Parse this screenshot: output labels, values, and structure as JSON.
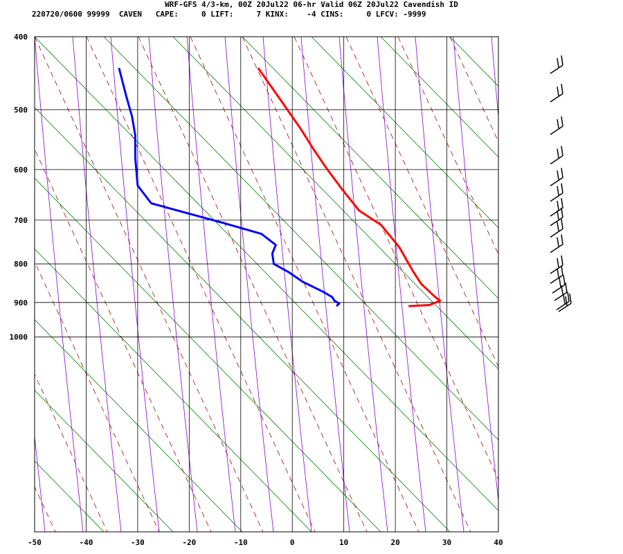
{
  "header": {
    "title": "WRF-GFS 4/3-km, 00Z 20Jul22 06-hr Valid 06Z 20Jul22 Cavendish ID",
    "stats": "220720/0600 99999  CAVEN   CAPE:     0 LIFT:     7 KINX:    -4 CINS:     0 LFCV: -9999"
  },
  "chart_data": {
    "type": "line",
    "title": "WRF-GFS 4/3-km, 00Z 20Jul22 06-hr Valid 06Z 20Jul22 Cavendish ID",
    "xlabel": "",
    "ylabel": "",
    "x_ticks": [
      -50,
      -40,
      -30,
      -20,
      -10,
      0,
      10,
      20,
      30,
      40
    ],
    "y_ticks": [
      400,
      500,
      600,
      700,
      800,
      900,
      1000
    ],
    "xlim": [
      -50,
      40
    ],
    "ylim": [
      1050,
      400
    ],
    "log_scale_y": true,
    "grid": true,
    "series": [
      {
        "name": "",
        "color": "#ff0000",
        "points": [
          [
            -16,
            440
          ],
          [
            -11,
            485
          ],
          [
            -6.5,
            530
          ],
          [
            -3.5,
            565
          ],
          [
            -0.5,
            600
          ],
          [
            3,
            640
          ],
          [
            6.5,
            680
          ],
          [
            11,
            710
          ],
          [
            15,
            760
          ],
          [
            18,
            815
          ],
          [
            20,
            850
          ],
          [
            23,
            885
          ],
          [
            24,
            895
          ],
          [
            22,
            907
          ],
          [
            18,
            910
          ]
        ]
      },
      {
        "name": "",
        "color": "#0000ff",
        "points": [
          [
            -43,
            440
          ],
          [
            -41,
            480
          ],
          [
            -39.5,
            510
          ],
          [
            -38.5,
            540
          ],
          [
            -38,
            580
          ],
          [
            -37,
            630
          ],
          [
            -34,
            665
          ],
          [
            -20,
            705
          ],
          [
            -12,
            730
          ],
          [
            -9,
            755
          ],
          [
            -9.5,
            775
          ],
          [
            -9,
            800
          ],
          [
            -6,
            820
          ],
          [
            -3,
            845
          ],
          [
            1,
            870
          ],
          [
            3,
            885
          ],
          [
            3.5,
            895
          ],
          [
            4.5,
            903
          ],
          [
            4,
            910
          ]
        ]
      }
    ],
    "wind_barbs_pressure": [
      440,
      480,
      530,
      580,
      620,
      650,
      680,
      700,
      725,
      760,
      810,
      835,
      860,
      880,
      905,
      910
    ],
    "background_lines": [
      "dry adiabats",
      "moist adiabats",
      "mixing ratio",
      "skewed isotherms",
      "isobars"
    ],
    "colors": {
      "temperature": "#ff0000",
      "dewpoint": "#0000ff",
      "isotherm": "#008000",
      "dry_adiabat": "#8800cc",
      "moist_adiabat": "#aa0000",
      "grid": "#000000",
      "barb": "#000000"
    }
  }
}
